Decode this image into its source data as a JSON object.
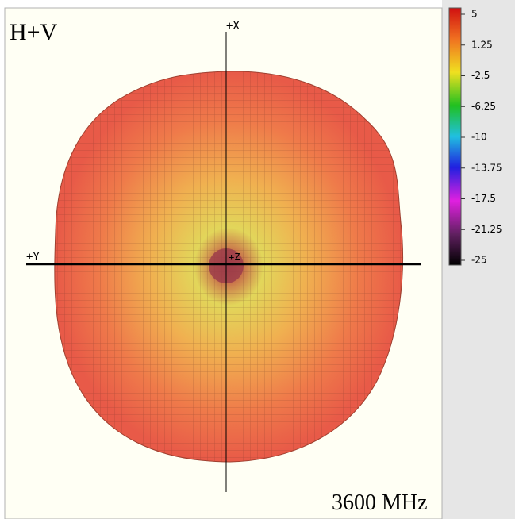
{
  "plot": {
    "label": "H+V",
    "axis_x": "+X",
    "axis_y": "+Y",
    "axis_z": "+Z",
    "frequency": "3600 MHz"
  },
  "colorbar": {
    "lim": [
      -25,
      5
    ],
    "ticks": [
      5,
      1.25,
      -2.5,
      -6.25,
      -10,
      -13.75,
      -17.5,
      -21.25,
      -25
    ]
  }
}
